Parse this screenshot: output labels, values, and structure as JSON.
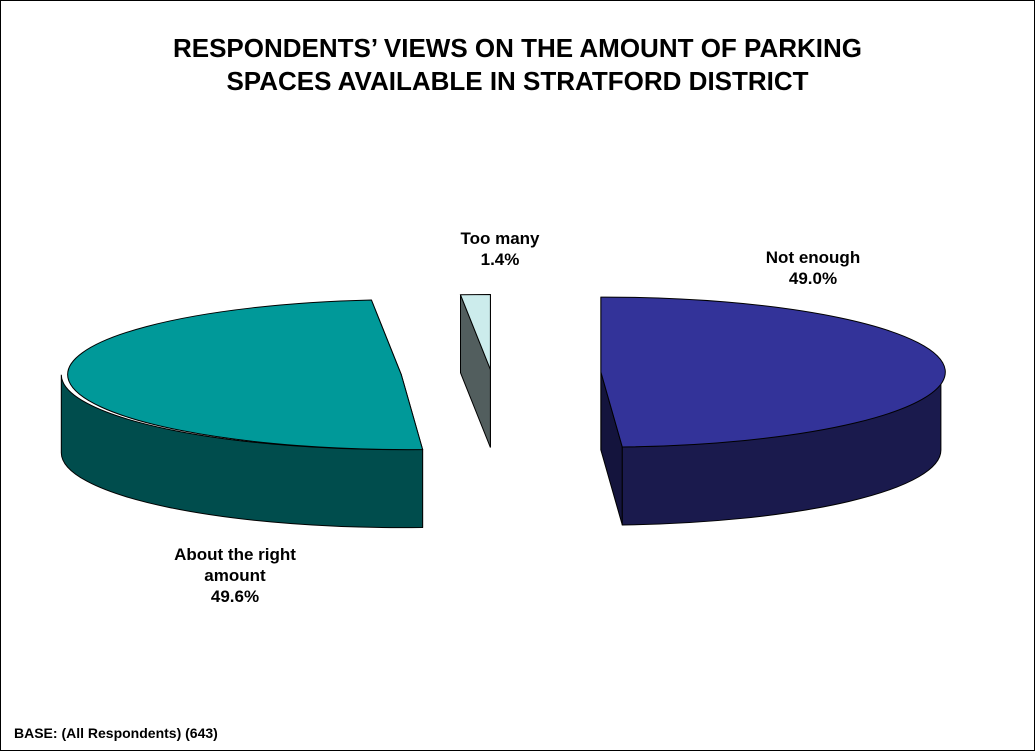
{
  "chart_data": {
    "type": "pie",
    "title_lines": [
      "RESPONDENTS’ VIEWS ON THE AMOUNT OF PARKING",
      "SPACES AVAILABLE IN STRATFORD DISTRICT"
    ],
    "slices": [
      {
        "label_lines": [
          "Not enough"
        ],
        "value": 49.0,
        "value_label": "49.0%",
        "color": "#333399"
      },
      {
        "label_lines": [
          "About the right",
          "amount"
        ],
        "value": 49.6,
        "value_label": "49.6%",
        "color": "#009999"
      },
      {
        "label_lines": [
          "Too many"
        ],
        "value": 1.4,
        "value_label": "1.4%",
        "color": "#CCECEC"
      }
    ],
    "three_d": true,
    "exploded": true,
    "legend": "none",
    "footnote": "BASE: (All Respondents) (643)"
  }
}
